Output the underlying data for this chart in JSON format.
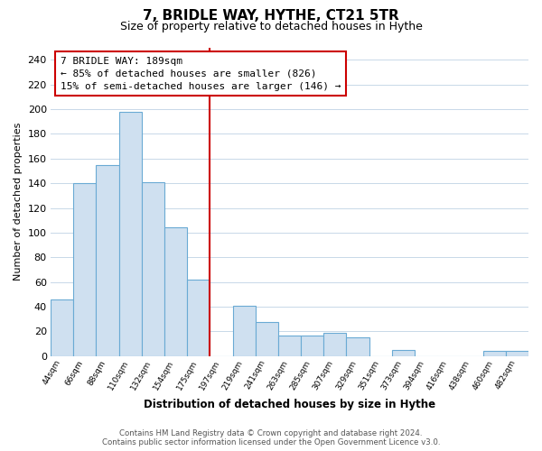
{
  "title": "7, BRIDLE WAY, HYTHE, CT21 5TR",
  "subtitle": "Size of property relative to detached houses in Hythe",
  "xlabel": "Distribution of detached houses by size in Hythe",
  "ylabel": "Number of detached properties",
  "bar_labels": [
    "44sqm",
    "66sqm",
    "88sqm",
    "110sqm",
    "132sqm",
    "154sqm",
    "175sqm",
    "197sqm",
    "219sqm",
    "241sqm",
    "263sqm",
    "285sqm",
    "307sqm",
    "329sqm",
    "351sqm",
    "373sqm",
    "394sqm",
    "416sqm",
    "438sqm",
    "460sqm",
    "482sqm"
  ],
  "bar_values": [
    46,
    140,
    155,
    198,
    141,
    104,
    62,
    0,
    41,
    28,
    17,
    17,
    19,
    15,
    0,
    5,
    0,
    0,
    0,
    4,
    4
  ],
  "bar_color": "#cfe0f0",
  "bar_edge_color": "#6aaad4",
  "vline_color": "#cc0000",
  "annotation_text": "7 BRIDLE WAY: 189sqm\n← 85% of detached houses are smaller (826)\n15% of semi-detached houses are larger (146) →",
  "annotation_box_color": "#ffffff",
  "annotation_box_edge": "#cc0000",
  "ylim": [
    0,
    250
  ],
  "yticks": [
    0,
    20,
    40,
    60,
    80,
    100,
    120,
    140,
    160,
    180,
    200,
    220,
    240
  ],
  "footer": "Contains HM Land Registry data © Crown copyright and database right 2024.\nContains public sector information licensed under the Open Government Licence v3.0.",
  "bg_color": "#ffffff",
  "grid_color": "#c8d8e8"
}
